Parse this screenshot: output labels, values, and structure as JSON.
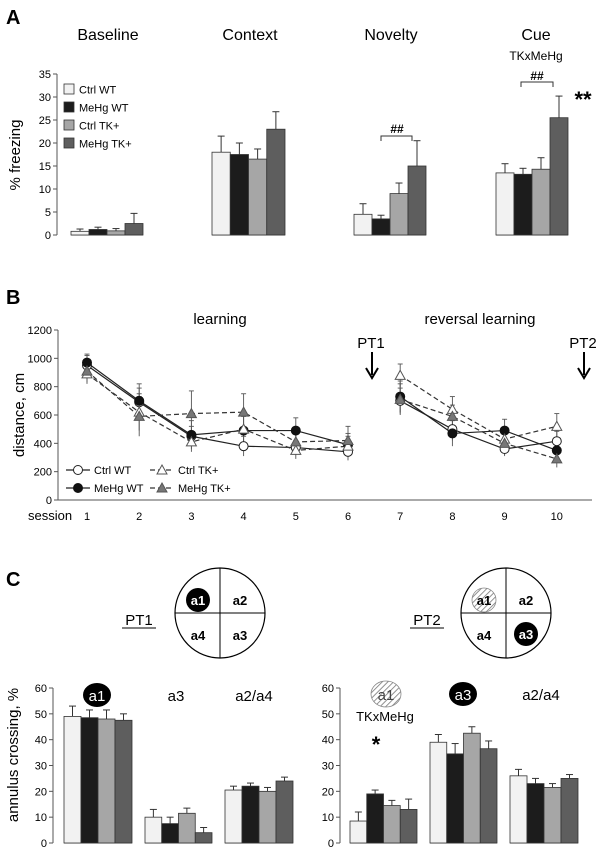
{
  "panels": {
    "A": {
      "letter": "A",
      "ylabel": "% freezing",
      "ylim": [
        0,
        35
      ],
      "yticks": [
        0,
        5,
        10,
        15,
        20,
        25,
        30,
        35
      ],
      "legend": [
        "Ctrl WT",
        "MeHg WT",
        "Ctrl TK+",
        "MeHg TK+"
      ],
      "colors": [
        "#f2f2f2",
        "#1c1c1c",
        "#a6a6a6",
        "#5e5e5e"
      ],
      "group_titles": [
        "Baseline",
        "Context",
        "Novelty",
        "Cue"
      ],
      "cue_subtitle": "TKxMeHg",
      "novelty_sig": "##",
      "cue_sig": "##",
      "cue_star": "**"
    },
    "B": {
      "letter": "B",
      "ylabel": "distance, cm",
      "xlabel": "session",
      "ylim": [
        0,
        1200
      ],
      "yticks": [
        0,
        200,
        400,
        600,
        800,
        1000,
        1200
      ],
      "learning_label": "learning",
      "reversal_label": "reversal learning",
      "pt1": "PT1",
      "pt2": "PT2"
    },
    "C": {
      "letter": "C",
      "ylabel": "annulus crossing, %",
      "ylim": [
        0,
        60
      ],
      "yticks": [
        0,
        10,
        20,
        30,
        40,
        50,
        60
      ],
      "pt1": {
        "title": "PT1",
        "quadrants": [
          "a1",
          "a2",
          "a4",
          "a3"
        ]
      },
      "pt2": {
        "title": "PT2",
        "quadrants": [
          "a1",
          "a2",
          "a4",
          "a3"
        ]
      },
      "left_groups": [
        "a1",
        "a3",
        "a2/a4"
      ],
      "right_groups": [
        "a1",
        "a3",
        "a2/a4"
      ],
      "right_subtitle": "TKxMeHg",
      "right_star": "*"
    }
  },
  "chart_data": [
    {
      "type": "bar",
      "title": "A: % freezing",
      "categories": [
        "Baseline",
        "Context",
        "Novelty",
        "Cue"
      ],
      "series": [
        {
          "name": "Ctrl WT",
          "values": [
            0.8,
            18.0,
            4.5,
            13.5
          ],
          "errors": [
            0.5,
            3.5,
            2.3,
            2.0
          ]
        },
        {
          "name": "MeHg WT",
          "values": [
            1.2,
            17.5,
            3.5,
            13.2
          ],
          "errors": [
            0.5,
            2.5,
            0.8,
            1.3
          ]
        },
        {
          "name": "Ctrl TK+",
          "values": [
            0.9,
            16.5,
            9.0,
            14.3
          ],
          "errors": [
            0.5,
            2.2,
            2.3,
            2.5
          ]
        },
        {
          "name": "MeHg TK+",
          "values": [
            2.5,
            23.0,
            15.0,
            25.5
          ],
          "errors": [
            2.2,
            3.8,
            5.5,
            4.7
          ]
        }
      ],
      "ylabel": "% freezing",
      "ylim": [
        0,
        35
      ]
    },
    {
      "type": "line",
      "title": "B: learning / reversal learning",
      "x": [
        1,
        2,
        3,
        4,
        5,
        6,
        7,
        8,
        9,
        10
      ],
      "series": [
        {
          "name": "Ctrl WT",
          "values": [
            950,
            690,
            450,
            380,
            370,
            340,
            700,
            500,
            360,
            415
          ],
          "errors": [
            70,
            100,
            70,
            70,
            50,
            60,
            90,
            80,
            50,
            70
          ]
        },
        {
          "name": "MeHg WT",
          "values": [
            970,
            700,
            460,
            490,
            490,
            390,
            730,
            470,
            490,
            350
          ],
          "errors": [
            60,
            120,
            100,
            110,
            90,
            80,
            110,
            90,
            80,
            80
          ]
        },
        {
          "name": "Ctrl TK+",
          "values": [
            890,
            620,
            410,
            500,
            350,
            380,
            880,
            640,
            430,
            520
          ],
          "errors": [
            70,
            130,
            70,
            90,
            60,
            70,
            80,
            90,
            70,
            90
          ]
        },
        {
          "name": "MeHg TK+",
          "values": [
            910,
            590,
            610,
            620,
            410,
            420,
            710,
            590,
            400,
            290
          ],
          "errors": [
            80,
            140,
            160,
            130,
            90,
            100,
            110,
            80,
            80,
            60
          ]
        }
      ],
      "xlabel": "session",
      "ylabel": "distance, cm",
      "ylim": [
        0,
        1200
      ]
    },
    {
      "type": "bar",
      "title": "C PT1: annulus crossing",
      "categories": [
        "a1",
        "a3",
        "a2/a4"
      ],
      "series": [
        {
          "name": "Ctrl WT",
          "values": [
            49,
            10,
            20.5
          ],
          "errors": [
            4,
            3,
            1.5
          ]
        },
        {
          "name": "MeHg WT",
          "values": [
            48.5,
            7.5,
            22
          ],
          "errors": [
            3,
            2.5,
            1.2
          ]
        },
        {
          "name": "Ctrl TK+",
          "values": [
            48,
            11.5,
            20
          ],
          "errors": [
            3.5,
            2,
            1.5
          ]
        },
        {
          "name": "MeHg TK+",
          "values": [
            47.5,
            4,
            24
          ],
          "errors": [
            2.5,
            2,
            1.5
          ]
        }
      ],
      "ylabel": "annulus crossing, %",
      "ylim": [
        0,
        60
      ]
    },
    {
      "type": "bar",
      "title": "C PT2: annulus crossing",
      "categories": [
        "a1",
        "a3",
        "a2/a4"
      ],
      "series": [
        {
          "name": "Ctrl WT",
          "values": [
            8.5,
            39,
            26
          ],
          "errors": [
            3.5,
            3,
            2.5
          ]
        },
        {
          "name": "MeHg WT",
          "values": [
            19,
            34.5,
            23
          ],
          "errors": [
            1.5,
            4,
            2
          ]
        },
        {
          "name": "Ctrl TK+",
          "values": [
            14.5,
            42.5,
            21.5
          ],
          "errors": [
            2,
            2.5,
            1.5
          ]
        },
        {
          "name": "MeHg TK+",
          "values": [
            13,
            36.5,
            25
          ],
          "errors": [
            4,
            3,
            1.5
          ]
        }
      ],
      "ylabel": "annulus crossing, %",
      "ylim": [
        0,
        60
      ]
    }
  ]
}
